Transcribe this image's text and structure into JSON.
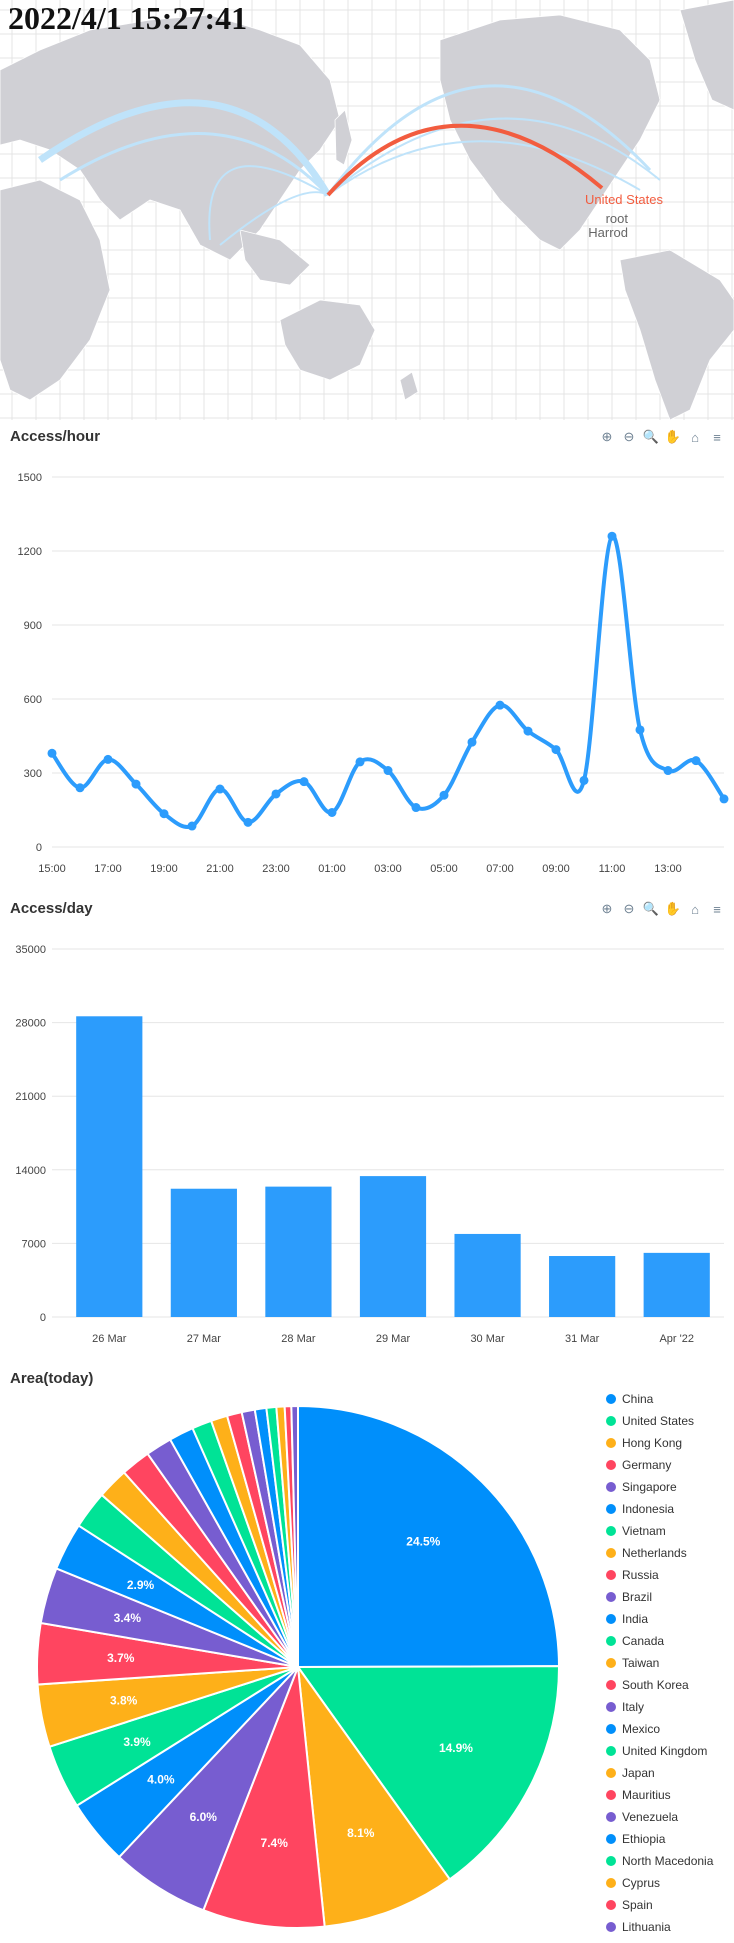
{
  "header": {
    "timestamp": "2022/4/1 15:27:41"
  },
  "map": {
    "highlight_country": "United States",
    "labels": [
      "root",
      "Harrod"
    ],
    "colors": {
      "land": "#d0d0d5",
      "grid": "#e2e2e2",
      "arc": "#bfe3fa",
      "highlight_arc": "#f25c3f",
      "highlight_text": "#f25c3f"
    }
  },
  "toolbar": {
    "zoom_in_icon": "⊕",
    "zoom_out_icon": "⊖",
    "magnify_icon": "🔍",
    "pan_icon": "✋",
    "home_icon": "⌂",
    "menu_icon": "≡"
  },
  "hourly": {
    "title": "Access/hour",
    "chart_data": {
      "type": "line",
      "title": "Access/hour",
      "x": [
        "15:00",
        "16:00",
        "17:00",
        "18:00",
        "19:00",
        "20:00",
        "21:00",
        "22:00",
        "23:00",
        "00:00",
        "01:00",
        "02:00",
        "03:00",
        "04:00",
        "05:00",
        "06:00",
        "07:00",
        "08:00",
        "09:00",
        "10:00",
        "11:00",
        "12:00",
        "13:00",
        "14:00",
        "15:00"
      ],
      "x_ticks": [
        "15:00",
        "17:00",
        "19:00",
        "21:00",
        "23:00",
        "01:00",
        "03:00",
        "05:00",
        "07:00",
        "09:00",
        "11:00",
        "13:00"
      ],
      "values": [
        380,
        240,
        355,
        255,
        135,
        85,
        235,
        100,
        215,
        265,
        140,
        345,
        310,
        160,
        210,
        425,
        575,
        470,
        395,
        270,
        1260,
        475,
        310,
        350,
        195
      ],
      "ylim": [
        0,
        1500
      ],
      "y_ticks": [
        0,
        300,
        600,
        900,
        1200,
        1500
      ],
      "color": "#2c9cfc"
    }
  },
  "daily": {
    "title": "Access/day",
    "chart_data": {
      "type": "bar",
      "title": "Access/day",
      "categories": [
        "26 Mar",
        "27 Mar",
        "28 Mar",
        "29 Mar",
        "30 Mar",
        "31 Mar",
        "Apr '22"
      ],
      "values": [
        28600,
        12200,
        12400,
        13400,
        7900,
        5800,
        6100
      ],
      "ylim": [
        0,
        35000
      ],
      "y_ticks": [
        0,
        7000,
        14000,
        21000,
        28000,
        35000
      ],
      "color": "#2c9cfc"
    }
  },
  "area": {
    "title": "Area(today)",
    "chart_data": {
      "type": "pie",
      "title": "Area(today)",
      "labels": [
        "China",
        "United States",
        "Hong Kong",
        "Germany",
        "Singapore",
        "Indonesia",
        "Vietnam",
        "Netherlands",
        "Russia",
        "Brazil",
        "India",
        "Canada",
        "Taiwan",
        "South Korea",
        "Italy",
        "Mexico",
        "United Kingdom",
        "Japan",
        "Mauritius",
        "Venezuela",
        "Ethiopia",
        "North Macedonia",
        "Cyprus",
        "Spain",
        "Lithuania"
      ],
      "values": [
        24.5,
        14.9,
        8.1,
        7.4,
        6.0,
        4.0,
        3.9,
        3.8,
        3.7,
        3.4,
        2.9,
        2.3,
        1.9,
        1.8,
        1.6,
        1.5,
        1.2,
        1.0,
        0.9,
        0.8,
        0.7,
        0.6,
        0.5,
        0.4,
        0.4
      ],
      "value_labels": [
        "24.5%",
        "14.9%",
        "8.1%",
        "7.4%",
        "6.0%",
        "4.0%",
        "3.9%",
        "3.8%",
        "3.7%",
        "3.4%",
        "2.9%",
        "",
        "",
        "",
        "",
        "",
        "",
        "",
        "",
        "",
        "",
        "",
        "",
        "",
        ""
      ],
      "colors": [
        "#008ffb",
        "#00e396",
        "#feb019",
        "#ff4560",
        "#775dd0"
      ]
    }
  }
}
